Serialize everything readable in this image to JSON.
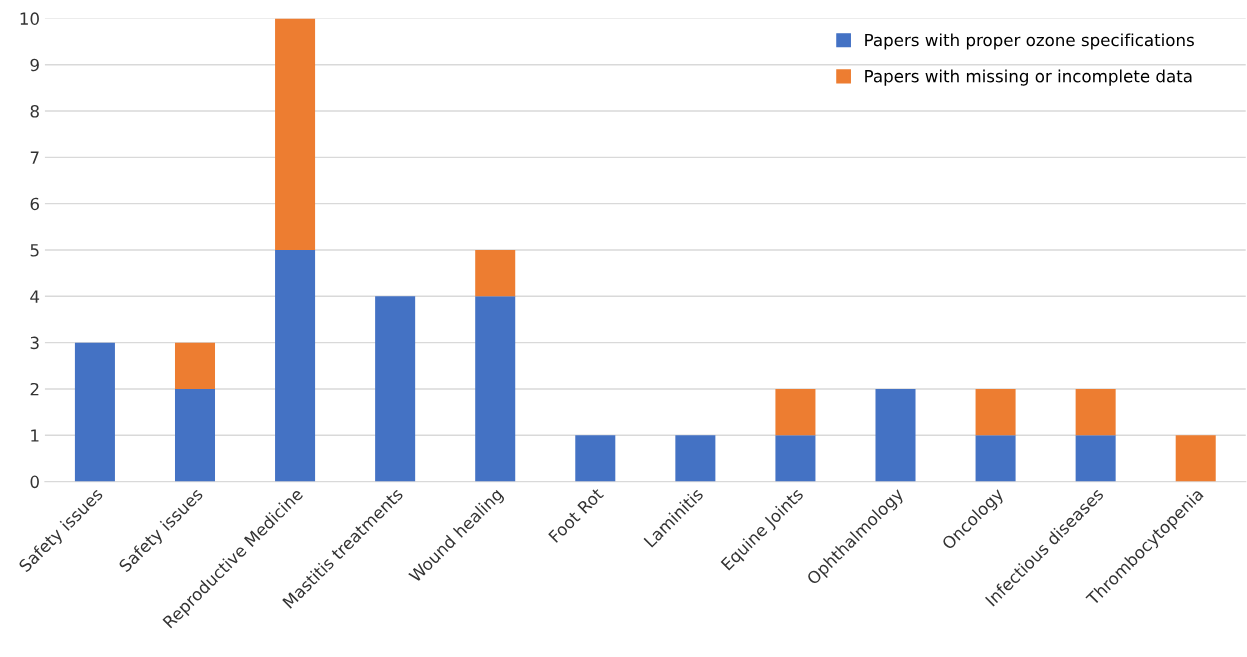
{
  "chart_data": {
    "type": "bar",
    "stacked": true,
    "categories": [
      "Safety issues",
      "Safety issues",
      "Reproductive Medicine",
      "Mastitis treatments",
      "Wound healing",
      "Foot Rot",
      "Laminitis",
      "Equine Joints",
      "Ophthalmology",
      "Oncology",
      "Infectious diseases",
      "Thrombocytopenia"
    ],
    "series": [
      {
        "name": "Papers with proper ozone specifications",
        "color": "#4472c4",
        "values": [
          3,
          2,
          5,
          4,
          4,
          1,
          1,
          1,
          2,
          1,
          1,
          0
        ]
      },
      {
        "name": "Papers with missing or incomplete data",
        "color": "#ed7d31",
        "values": [
          0,
          1,
          5,
          0,
          1,
          0,
          0,
          1,
          0,
          1,
          1,
          1
        ]
      }
    ],
    "ylim": [
      0,
      10
    ],
    "yticks": [
      0,
      1,
      2,
      3,
      4,
      5,
      6,
      7,
      8,
      9,
      10
    ],
    "grid": "y",
    "legend": "top right"
  }
}
